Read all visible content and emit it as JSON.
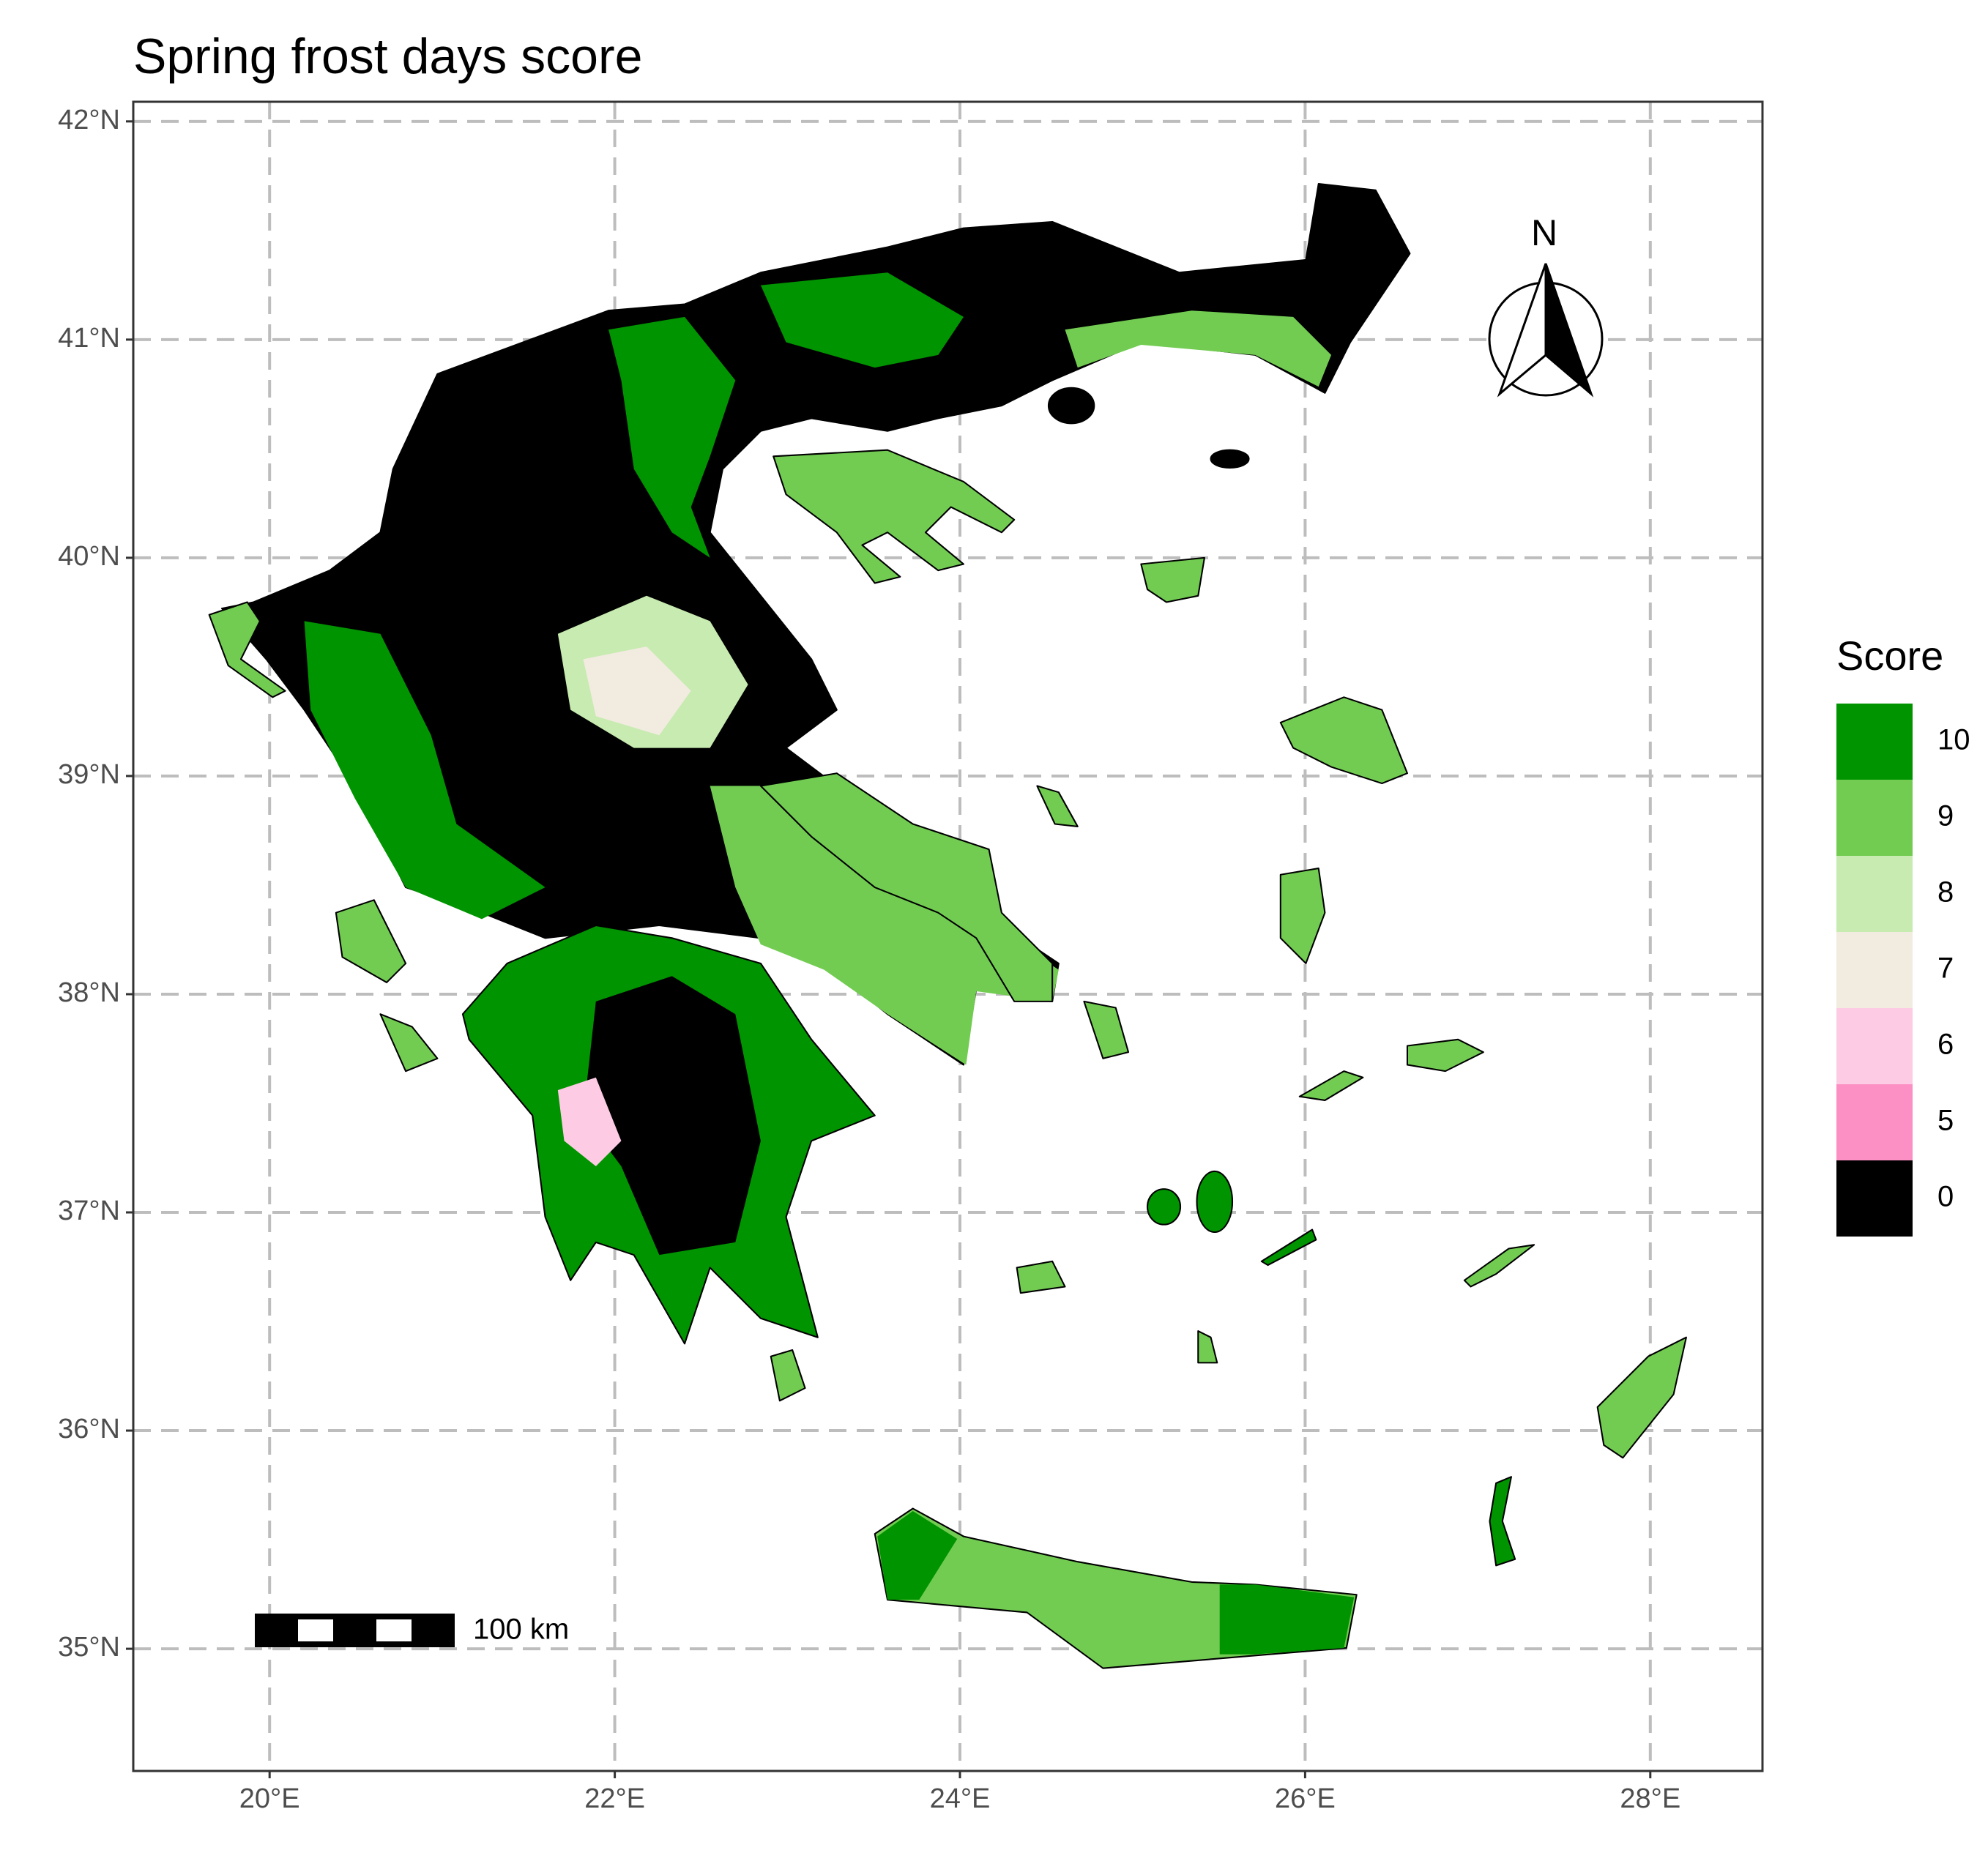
{
  "map": {
    "title": "Spring frost days score",
    "xlim": [
      19.21,
      28.65
    ],
    "ylim": [
      34.44,
      42.09
    ],
    "xticks": [
      {
        "value": 20,
        "label": "20°E"
      },
      {
        "value": 22,
        "label": "22°E"
      },
      {
        "value": 24,
        "label": "24°E"
      },
      {
        "value": 26,
        "label": "26°E"
      },
      {
        "value": 28,
        "label": "28°E"
      }
    ],
    "yticks": [
      {
        "value": 35,
        "label": "35°N"
      },
      {
        "value": 36,
        "label": "36°N"
      },
      {
        "value": 37,
        "label": "37°N"
      },
      {
        "value": 38,
        "label": "38°N"
      },
      {
        "value": 39,
        "label": "39°N"
      },
      {
        "value": 40,
        "label": "40°N"
      },
      {
        "value": 41,
        "label": "41°N"
      },
      {
        "value": 42,
        "label": "42°N"
      }
    ],
    "grid": true,
    "legend": {
      "title": "Score",
      "items": [
        {
          "value": 10,
          "color": "#009400"
        },
        {
          "value": 9,
          "color": "#72cc52"
        },
        {
          "value": 8,
          "color": "#c7ebb0"
        },
        {
          "value": 7,
          "color": "#f2ebe0"
        },
        {
          "value": 6,
          "color": "#fdcbe3"
        },
        {
          "value": 5,
          "color": "#fc8fc4"
        },
        {
          "value": 0,
          "color": "#000000"
        }
      ]
    },
    "scale_bar": "100 km",
    "north_arrow": "N"
  }
}
